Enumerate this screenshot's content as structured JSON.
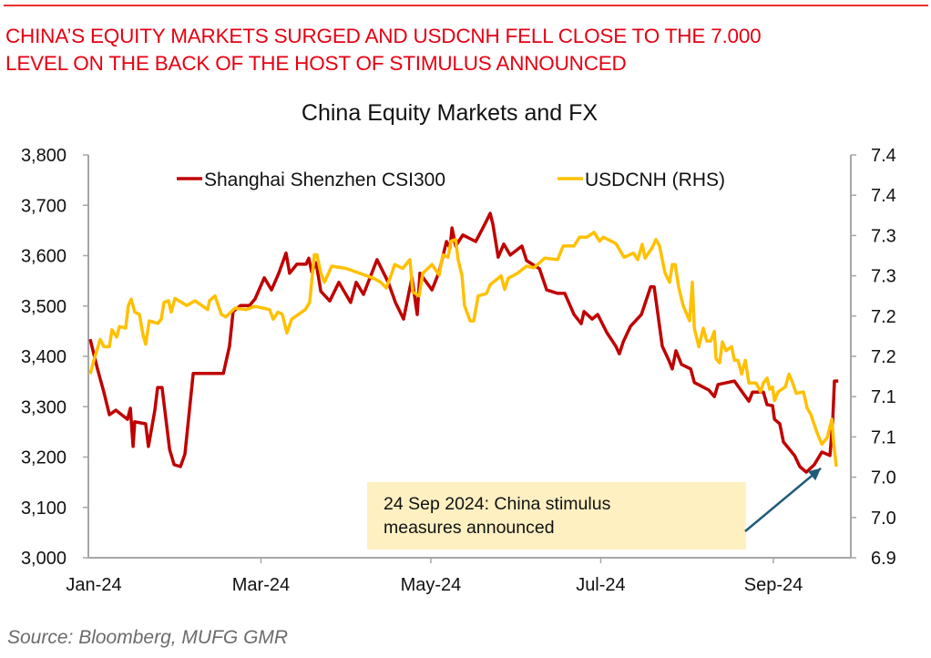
{
  "headline": {
    "line1": "CHINA’S EQUITY MARKETS SURGED AND USDCNH FELL CLOSE TO THE 7.000",
    "line2": "LEVEL ON THE BACK OF THE HOST OF STIMULUS ANNOUNCED"
  },
  "source": "Source: Bloomberg, MUFG GMR",
  "colors": {
    "csi300": "#c00000",
    "usdcnh": "#ffc000",
    "headline": "#e60012",
    "annotation_bg": "#fff0c2",
    "arrow": "#1f5c7a",
    "axis": "#a6a6a6"
  },
  "chart_data": {
    "type": "line",
    "title": "China Equity Markets and FX",
    "xlabel": "",
    "x_unit": "days since 1 Jan 2024",
    "x_ticks": [
      {
        "label": "Jan-24",
        "day": 0
      },
      {
        "label": "Mar-24",
        "day": 60
      },
      {
        "label": "May-24",
        "day": 121
      },
      {
        "label": "Jul-24",
        "day": 182
      },
      {
        "label": "Sep-24",
        "day": 244
      }
    ],
    "xlim": [
      -2,
      271
    ],
    "y_left": {
      "ylim": [
        3000,
        3800
      ],
      "ticks": [
        "3,000",
        "3,100",
        "3,200",
        "3,300",
        "3,400",
        "3,500",
        "3,600",
        "3,700",
        "3,800"
      ],
      "tick_values": [
        3000,
        3100,
        3200,
        3300,
        3400,
        3500,
        3600,
        3700,
        3800
      ]
    },
    "y_right": {
      "ylim": [
        6.9,
        7.4
      ],
      "ticks": [
        "6.9",
        "7.0",
        "7.0",
        "7.1",
        "7.1",
        "7.2",
        "7.2",
        "7.3",
        "7.3",
        "7.4",
        "7.4"
      ],
      "tick_values": [
        6.9,
        6.95,
        7.0,
        7.05,
        7.1,
        7.15,
        7.2,
        7.25,
        7.3,
        7.35,
        7.4
      ]
    },
    "legend": {
      "position": "top",
      "entries": [
        "Shanghai Shenzhen CSI300",
        "USDCNH (RHS)"
      ]
    },
    "grid": false,
    "series": [
      {
        "name": "Shanghai Shenzhen CSI300",
        "axis": "left",
        "x": [
          -1.3,
          1.3,
          3.6,
          5.6,
          7.9,
          12.1,
          13.1,
          14.1,
          14.7,
          18.6,
          19.6,
          21.9,
          22.9,
          24.5,
          27.2,
          28.8,
          31.1,
          32.7,
          35.7,
          46.5,
          48.7,
          50.0,
          52.7,
          55.9,
          57.9,
          61.2,
          63.8,
          66.4,
          69.0,
          70.3,
          72.9,
          76.2,
          77.2,
          78.2,
          79.8,
          81.5,
          84.7,
          88.0,
          92.2,
          94.2,
          96.8,
          100.4,
          101.7,
          105.7,
          108.3,
          111.2,
          114.2,
          116.1,
          117.1,
          121.4,
          124.0,
          126.6,
          127.9,
          128.6,
          129.9,
          132.5,
          137.1,
          139.7,
          142.3,
          143.3,
          145.2,
          147.2,
          149.5,
          153.7,
          155.4,
          160.0,
          162.6,
          166.5,
          169.1,
          172.4,
          175.0,
          176.0,
          178.9,
          180.9,
          184.2,
          187.4,
          188.7,
          190.1,
          192.7,
          196.6,
          199.9,
          201.2,
          204.1,
          206.4,
          207.7,
          209.0,
          211.0,
          214.3,
          215.6,
          220.8,
          222.8,
          224.1,
          230.0,
          233.2,
          235.2,
          236.5,
          240.4,
          241.7,
          243.7,
          244.4,
          246.3,
          247.6,
          251.6,
          253.5,
          255.8,
          258.7,
          261.4,
          264.3,
          265.3,
          265.9,
          267.3
        ],
        "values": [
          3434,
          3375,
          3329,
          3284,
          3293,
          3275,
          3297,
          3221,
          3270,
          3266,
          3221,
          3293,
          3338,
          3338,
          3215,
          3185,
          3181,
          3206,
          3366,
          3366,
          3420,
          3489,
          3501,
          3501,
          3514,
          3556,
          3532,
          3565,
          3605,
          3565,
          3583,
          3583,
          3595,
          3568,
          3586,
          3529,
          3510,
          3547,
          3507,
          3547,
          3523,
          3574,
          3592,
          3547,
          3507,
          3474,
          3556,
          3483,
          3565,
          3532,
          3568,
          3628,
          3615,
          3655,
          3619,
          3641,
          3628,
          3655,
          3684,
          3662,
          3597,
          3623,
          3601,
          3619,
          3590,
          3574,
          3532,
          3525,
          3525,
          3483,
          3465,
          3489,
          3474,
          3483,
          3447,
          3420,
          3405,
          3429,
          3460,
          3483,
          3538,
          3538,
          3420,
          3393,
          3375,
          3411,
          3384,
          3375,
          3348,
          3333,
          3320,
          3344,
          3351,
          3326,
          3311,
          3329,
          3329,
          3304,
          3302,
          3275,
          3266,
          3230,
          3203,
          3181,
          3170,
          3185,
          3210,
          3203,
          3272,
          3351,
          3351
        ]
      },
      {
        "name": "USDCNH (RHS)",
        "axis": "right",
        "x": [
          -1.3,
          0,
          2.3,
          3.6,
          5.6,
          6.5,
          8.2,
          9.2,
          11.4,
          12.4,
          13.4,
          14.7,
          16.4,
          17.7,
          18.6,
          19.9,
          22.9,
          24.2,
          25.2,
          26.8,
          27.8,
          29.1,
          33.4,
          36.3,
          40.9,
          41.5,
          43.5,
          45.8,
          47.4,
          50.7,
          54.6,
          57.9,
          63.1,
          64.4,
          66.1,
          67.7,
          69.3,
          71.0,
          75.9,
          77.5,
          79.2,
          80.1,
          81.5,
          82.8,
          85.4,
          90.6,
          95.5,
          100.4,
          103.0,
          105.0,
          107.0,
          108.0,
          110.9,
          113.5,
          114.5,
          116.8,
          118.1,
          121.4,
          124.0,
          125.3,
          127.2,
          128.2,
          129.9,
          130.8,
          132.2,
          133.1,
          135.1,
          136.4,
          138.0,
          141.0,
          142.3,
          144.9,
          146.2,
          147.5,
          148.8,
          152.1,
          155.4,
          158.0,
          161.9,
          166.5,
          168.5,
          172.4,
          174.4,
          177.0,
          179.6,
          181.6,
          182.9,
          187.4,
          190.4,
          193.7,
          195.3,
          196.9,
          197.9,
          200.5,
          201.8,
          203.1,
          205.1,
          206.7,
          207.7,
          208.7,
          210.0,
          211.6,
          213.9,
          214.9,
          215.6,
          217.2,
          218.8,
          220.1,
          221.5,
          222.8,
          223.4,
          224.7,
          225.7,
          227.0,
          229.0,
          230.0,
          231.3,
          232.6,
          233.9,
          235.2,
          237.8,
          239.4,
          240.4,
          241.7,
          242.7,
          243.7,
          244.4,
          245.7,
          248.3,
          249.6,
          250.9,
          252.2,
          254.8,
          256.1,
          257.4,
          259.7,
          261.4,
          263.3,
          265.0,
          265.6,
          266.6
        ],
        "values": [
          7.128,
          7.145,
          7.171,
          7.162,
          7.162,
          7.183,
          7.174,
          7.187,
          7.185,
          7.213,
          7.221,
          7.205,
          7.202,
          7.176,
          7.165,
          7.194,
          7.191,
          7.196,
          7.217,
          7.219,
          7.205,
          7.222,
          7.213,
          7.219,
          7.208,
          7.219,
          7.225,
          7.202,
          7.199,
          7.21,
          7.208,
          7.212,
          7.208,
          7.196,
          7.205,
          7.202,
          7.179,
          7.196,
          7.208,
          7.217,
          7.276,
          7.276,
          7.253,
          7.242,
          7.262,
          7.259,
          7.253,
          7.247,
          7.242,
          7.235,
          7.253,
          7.264,
          7.259,
          7.27,
          7.23,
          7.225,
          7.253,
          7.264,
          7.251,
          7.276,
          7.273,
          7.293,
          7.295,
          7.27,
          7.25,
          7.213,
          7.194,
          7.194,
          7.225,
          7.228,
          7.239,
          7.246,
          7.25,
          7.233,
          7.247,
          7.253,
          7.262,
          7.26,
          7.272,
          7.27,
          7.287,
          7.287,
          7.298,
          7.298,
          7.304,
          7.293,
          7.298,
          7.29,
          7.273,
          7.278,
          7.27,
          7.289,
          7.272,
          7.285,
          7.295,
          7.287,
          7.253,
          7.242,
          7.264,
          7.264,
          7.236,
          7.213,
          7.194,
          7.242,
          7.185,
          7.162,
          7.185,
          7.169,
          7.169,
          7.181,
          7.147,
          7.142,
          7.168,
          7.157,
          7.162,
          7.145,
          7.145,
          7.128,
          7.145,
          7.117,
          7.117,
          7.106,
          7.117,
          7.123,
          7.109,
          7.112,
          7.095,
          7.106,
          7.112,
          7.128,
          7.117,
          7.104,
          7.106,
          7.086,
          7.078,
          7.055,
          7.041,
          7.049,
          7.072,
          7.044,
          7.013
        ]
      }
    ],
    "annotation": {
      "line1": "24 Sep 2024: China stimulus",
      "line2": "measures announced",
      "points_to": {
        "day": 264.3,
        "series": "Shanghai Shenzhen CSI300",
        "value": 3203
      }
    }
  }
}
